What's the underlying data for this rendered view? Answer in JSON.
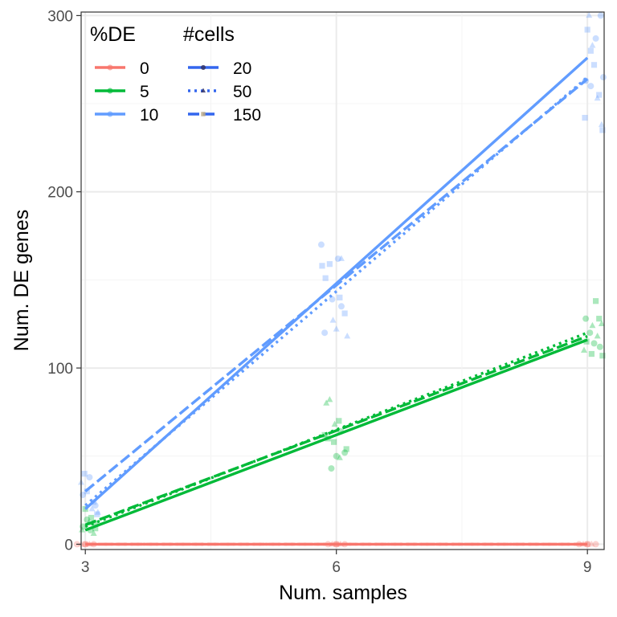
{
  "chart_data": {
    "type": "scatter",
    "xlabel": "Num. samples",
    "ylabel": "Num. DE genes",
    "xlim": [
      2.95,
      9.2
    ],
    "ylim": [
      -3,
      302
    ],
    "x_ticks": [
      3,
      6,
      9
    ],
    "y_ticks": [
      0,
      100,
      200,
      300
    ],
    "grid": true,
    "legend_placement": "top-left",
    "legends": {
      "de": {
        "title": "%DE",
        "items": [
          {
            "label": "0",
            "color": "#F8766D"
          },
          {
            "label": "5",
            "color": "#00BA38"
          },
          {
            "label": "10",
            "color": "#619CFF"
          }
        ]
      },
      "cells": {
        "title": "#cells",
        "items": [
          {
            "label": "20",
            "linetype": "solid",
            "shape": "circle",
            "color": "#3366EE"
          },
          {
            "label": "50",
            "linetype": "dotted",
            "shape": "triangle",
            "color": "#3366EE"
          },
          {
            "label": "150",
            "linetype": "dashed",
            "shape": "square",
            "color": "#3366EE"
          }
        ]
      }
    },
    "fit_lines": [
      {
        "de": "0",
        "cells": "20",
        "x": [
          3,
          9
        ],
        "y": [
          0,
          0
        ]
      },
      {
        "de": "0",
        "cells": "50",
        "x": [
          3,
          9
        ],
        "y": [
          0,
          0
        ]
      },
      {
        "de": "0",
        "cells": "150",
        "x": [
          3,
          9
        ],
        "y": [
          0,
          0
        ]
      },
      {
        "de": "5",
        "cells": "20",
        "x": [
          3,
          9
        ],
        "y": [
          8,
          116
        ]
      },
      {
        "de": "5",
        "cells": "50",
        "x": [
          3,
          9
        ],
        "y": [
          10,
          120
        ]
      },
      {
        "de": "5",
        "cells": "150",
        "x": [
          3,
          9
        ],
        "y": [
          11,
          118
        ]
      },
      {
        "de": "10",
        "cells": "20",
        "x": [
          3,
          9
        ],
        "y": [
          20,
          276
        ]
      },
      {
        "de": "10",
        "cells": "50",
        "x": [
          3,
          9
        ],
        "y": [
          22,
          265
        ]
      },
      {
        "de": "10",
        "cells": "150",
        "x": [
          3,
          9
        ],
        "y": [
          30,
          264
        ]
      }
    ],
    "points": [
      {
        "de": "0",
        "shape": "circle",
        "x": [
          2.9,
          3.0,
          3.1,
          5.9,
          6.0,
          6.1,
          8.9,
          9.0,
          9.1
        ],
        "y": [
          0,
          0,
          0,
          0,
          0,
          0,
          0,
          0,
          0
        ]
      },
      {
        "de": "0",
        "shape": "triangle",
        "x": [
          2.95,
          3.05,
          5.95,
          6.05,
          8.95,
          9.05
        ],
        "y": [
          0,
          0,
          0,
          0,
          0,
          0
        ]
      },
      {
        "de": "0",
        "shape": "square",
        "x": [
          3.0,
          6.0,
          9.0
        ],
        "y": [
          0,
          0,
          0
        ]
      },
      {
        "de": "5",
        "shape": "circle",
        "x": [
          2.97,
          3.02,
          3.06,
          3.12,
          5.94,
          6.0,
          6.05,
          6.1,
          8.98,
          9.03,
          9.08,
          9.15
        ],
        "y": [
          10,
          14,
          8,
          12,
          43,
          50,
          64,
          52,
          128,
          120,
          114,
          112
        ]
      },
      {
        "de": "5",
        "shape": "triangle",
        "x": [
          2.96,
          3.04,
          3.1,
          5.88,
          5.92,
          5.98,
          6.04,
          8.96,
          9.06,
          9.12,
          9.17
        ],
        "y": [
          8,
          12,
          6,
          80,
          82,
          68,
          49,
          110,
          124,
          118,
          125
        ]
      },
      {
        "de": "5",
        "shape": "square",
        "x": [
          3.0,
          3.07,
          3.12,
          5.86,
          5.9,
          5.97,
          6.03,
          6.12,
          8.99,
          9.05,
          9.1,
          9.14,
          9.18
        ],
        "y": [
          20,
          15,
          9,
          62,
          60,
          58,
          70,
          54,
          115,
          108,
          138,
          128,
          107
        ]
      },
      {
        "de": "10",
        "shape": "circle",
        "x": [
          2.97,
          3.05,
          3.12,
          5.82,
          5.86,
          5.95,
          6.02,
          6.06,
          8.98,
          9.04,
          9.1,
          9.16,
          9.19
        ],
        "y": [
          28,
          38,
          22,
          170,
          120,
          139,
          162,
          135,
          263,
          260,
          287,
          300,
          265
        ]
      },
      {
        "de": "10",
        "shape": "triangle",
        "x": [
          2.95,
          3.08,
          3.15,
          5.96,
          6.0,
          6.06,
          6.13,
          8.96,
          9.02,
          9.06,
          9.12,
          9.17
        ],
        "y": [
          35,
          20,
          18,
          127,
          122,
          162,
          118,
          263,
          300,
          283,
          253,
          238
        ]
      },
      {
        "de": "10",
        "shape": "square",
        "x": [
          2.99,
          3.02,
          3.1,
          3.14,
          5.83,
          5.87,
          5.92,
          6.04,
          6.1,
          8.97,
          9.0,
          9.04,
          9.08,
          9.14,
          9.18
        ],
        "y": [
          40,
          30,
          24,
          17,
          158,
          151,
          159,
          140,
          131,
          242,
          292,
          280,
          272,
          255,
          235
        ]
      }
    ]
  }
}
